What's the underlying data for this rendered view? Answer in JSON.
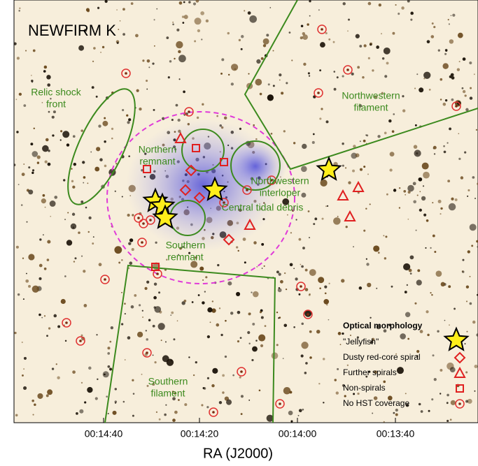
{
  "image": {
    "title": "NEWFIRM K",
    "regions": [
      {
        "lines": [
          "Relic shock",
          "front"
        ]
      },
      {
        "lines": [
          "Northwestern",
          "filament"
        ]
      },
      {
        "lines": [
          "Northern",
          "remnant"
        ]
      },
      {
        "lines": [
          "Northwestern",
          "interloper"
        ]
      },
      {
        "lines": [
          "Central tidal debris"
        ]
      },
      {
        "lines": [
          "Southern",
          "remnant"
        ]
      },
      {
        "lines": [
          "Southern",
          "filament"
        ]
      }
    ],
    "x_axis": {
      "ticks": [
        "00:14:40",
        "00:14:20",
        "00:14:00",
        "00:13:40"
      ],
      "label": "RA (J2000)"
    },
    "legend": {
      "title": "Optical morphology",
      "items": [
        "\"Jellyfish\"",
        "Dusty red-core spiral",
        "Further spirals",
        "Non-spirals",
        "No HST coverage"
      ]
    }
  }
}
